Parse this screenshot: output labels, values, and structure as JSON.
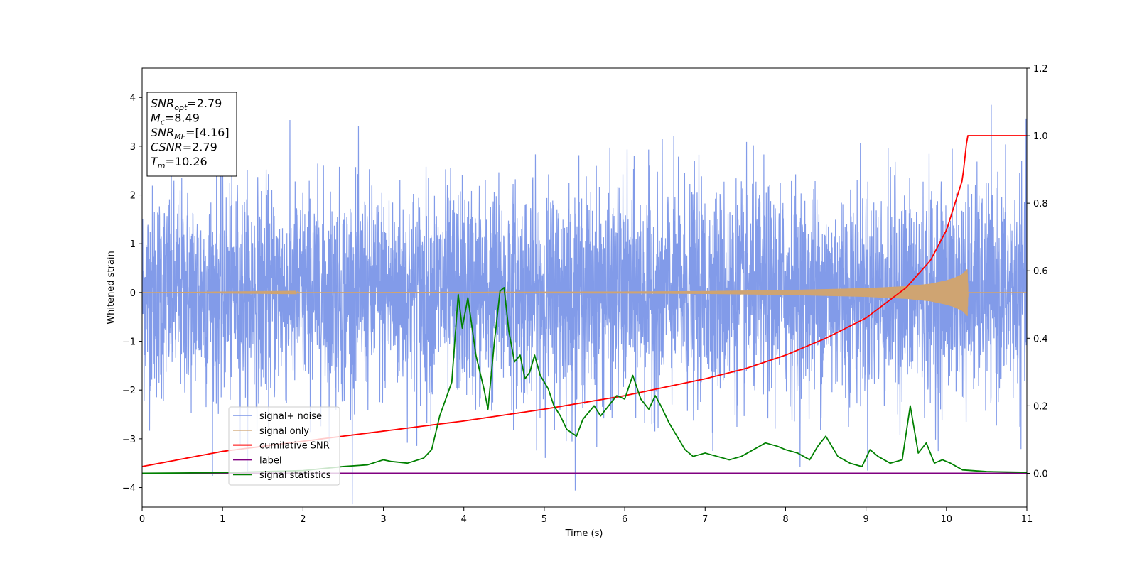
{
  "chart_data": {
    "type": "line",
    "xlabel": "Time (s)",
    "ylabel": "Whitened strain",
    "xlim": [
      0,
      11
    ],
    "ylim": [
      -4.4,
      4.6
    ],
    "y2lim": [
      -0.1,
      1.2
    ],
    "x_ticks": [
      "0",
      "1",
      "2",
      "3",
      "4",
      "5",
      "6",
      "7",
      "8",
      "9",
      "10",
      "11"
    ],
    "y_ticks": [
      "4",
      "3",
      "2",
      "1",
      "0",
      "−1",
      "−2",
      "−3",
      "−4"
    ],
    "y2_ticks": [
      "1.2",
      "1.0",
      "0.8",
      "0.6",
      "0.4",
      "0.2",
      "0.0"
    ],
    "grid": false,
    "legend_position": "lower-left",
    "annotation": {
      "lines": [
        {
          "sym": "SNR",
          "sub": "opt",
          "val": "=2.79"
        },
        {
          "sym": "M",
          "sub": "c",
          "val": "=8.49"
        },
        {
          "sym": "SNR",
          "sub": "MF",
          "val": "=[4.16]"
        },
        {
          "sym": "CSNR",
          "sub": "",
          "val": "=2.79"
        },
        {
          "sym": "T",
          "sub": "m",
          "val": "=10.26"
        }
      ]
    },
    "series": [
      {
        "name": "signal+ noise",
        "axis": "left",
        "color": "#7b96e8",
        "noise_sigma": 1.0,
        "x_range": [
          0,
          11
        ]
      },
      {
        "name": "signal only",
        "axis": "left",
        "color": "#cfa472",
        "x_range": [
          0,
          11
        ],
        "envelope": {
          "x": [
            0,
            6,
            7,
            8,
            8.5,
            9,
            9.5,
            9.8,
            10.0,
            10.1,
            10.2,
            10.26,
            10.27
          ],
          "amp": [
            0.0,
            0.02,
            0.03,
            0.05,
            0.07,
            0.09,
            0.13,
            0.18,
            0.25,
            0.3,
            0.38,
            0.48,
            0.0
          ]
        }
      },
      {
        "name": "cumilative SNR",
        "axis": "right",
        "color": "#ff0000",
        "x": [
          0,
          1,
          2,
          3,
          4,
          5,
          6,
          7,
          7.5,
          8,
          8.5,
          9,
          9.5,
          9.8,
          10.0,
          10.2,
          10.26,
          10.27,
          11
        ],
        "values": [
          0.02,
          0.065,
          0.095,
          0.125,
          0.155,
          0.19,
          0.23,
          0.28,
          0.31,
          0.35,
          0.4,
          0.46,
          0.55,
          0.63,
          0.72,
          0.87,
          1.0,
          1.0,
          1.0
        ]
      },
      {
        "name": "label",
        "axis": "right",
        "color": "#800080",
        "x": [
          0,
          11
        ],
        "values": [
          0.0,
          0.0
        ]
      },
      {
        "name": "signal statistics",
        "axis": "right",
        "color": "#008000",
        "x": [
          0,
          1,
          2,
          2.5,
          2.8,
          3.0,
          3.1,
          3.3,
          3.5,
          3.6,
          3.7,
          3.85,
          3.93,
          3.98,
          4.05,
          4.15,
          4.25,
          4.3,
          4.38,
          4.45,
          4.5,
          4.56,
          4.63,
          4.7,
          4.76,
          4.82,
          4.88,
          4.95,
          5.05,
          5.12,
          5.2,
          5.28,
          5.4,
          5.48,
          5.55,
          5.62,
          5.7,
          5.8,
          5.9,
          6.0,
          6.1,
          6.2,
          6.3,
          6.38,
          6.45,
          6.55,
          6.65,
          6.75,
          6.85,
          7.0,
          7.15,
          7.3,
          7.45,
          7.6,
          7.75,
          7.9,
          8.0,
          8.15,
          8.3,
          8.4,
          8.5,
          8.65,
          8.8,
          8.95,
          9.05,
          9.15,
          9.3,
          9.45,
          9.55,
          9.65,
          9.75,
          9.85,
          9.95,
          10.05,
          10.2,
          10.5,
          11.0
        ],
        "values": [
          0.0,
          0.002,
          0.008,
          0.02,
          0.025,
          0.04,
          0.035,
          0.03,
          0.045,
          0.07,
          0.17,
          0.27,
          0.53,
          0.43,
          0.52,
          0.35,
          0.25,
          0.19,
          0.39,
          0.54,
          0.55,
          0.42,
          0.33,
          0.35,
          0.28,
          0.3,
          0.35,
          0.29,
          0.25,
          0.2,
          0.17,
          0.13,
          0.11,
          0.16,
          0.18,
          0.2,
          0.17,
          0.2,
          0.23,
          0.22,
          0.29,
          0.22,
          0.19,
          0.23,
          0.2,
          0.15,
          0.11,
          0.07,
          0.05,
          0.06,
          0.05,
          0.04,
          0.05,
          0.07,
          0.09,
          0.08,
          0.07,
          0.06,
          0.04,
          0.08,
          0.11,
          0.05,
          0.03,
          0.02,
          0.07,
          0.05,
          0.03,
          0.04,
          0.2,
          0.06,
          0.09,
          0.03,
          0.04,
          0.03,
          0.01,
          0.005,
          0.003
        ]
      }
    ]
  }
}
